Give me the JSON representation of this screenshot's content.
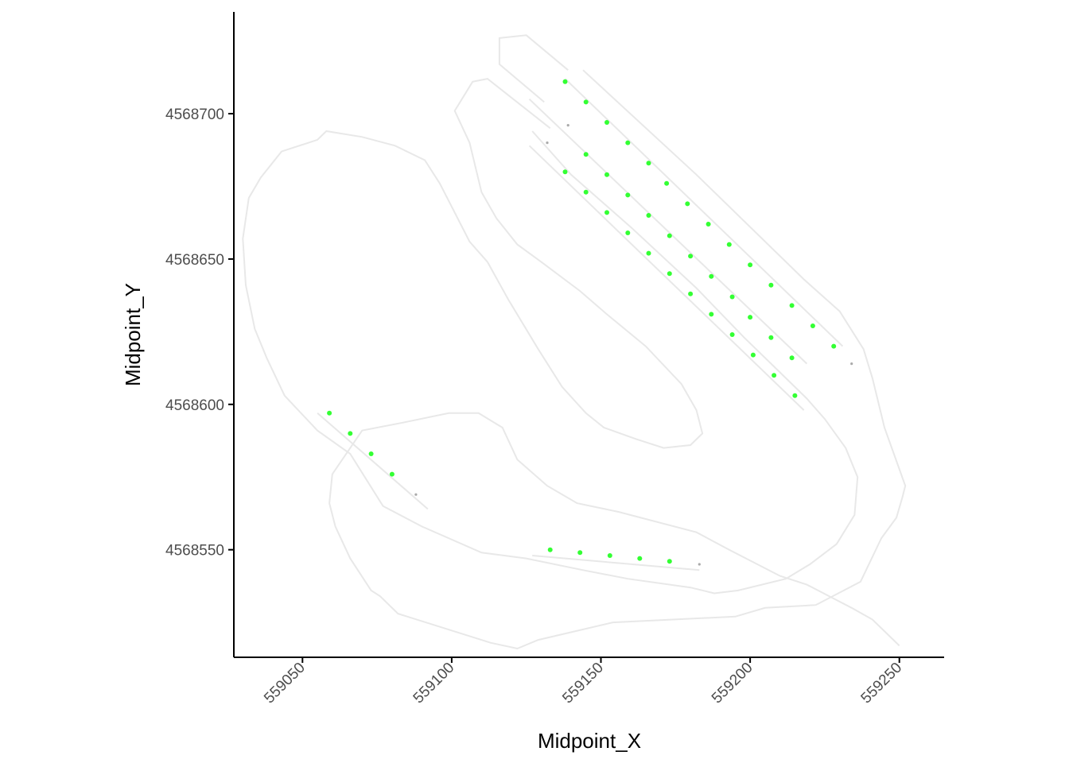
{
  "chart_data": {
    "type": "scatter",
    "title": "",
    "xlabel": "Midpoint_X",
    "ylabel": "Midpoint_Y",
    "xlim": [
      559027,
      559265
    ],
    "ylim": [
      4568513,
      4568735
    ],
    "x_ticks": [
      {
        "value": 559050,
        "label": "559050"
      },
      {
        "value": 559100,
        "label": "559100"
      },
      {
        "value": 559150,
        "label": "559150"
      },
      {
        "value": 559200,
        "label": "559200"
      },
      {
        "value": 559250,
        "label": "559250"
      }
    ],
    "y_ticks": [
      {
        "value": 4568550,
        "label": "4568550"
      },
      {
        "value": 4568600,
        "label": "4568600"
      },
      {
        "value": 4568650,
        "label": "4568650"
      },
      {
        "value": 4568700,
        "label": "4568700"
      }
    ],
    "grid": false,
    "legend": "none",
    "colors": {
      "point_included": "#33ff33",
      "point_excluded": "#aaaaaa",
      "track_line": "#e8e8e8",
      "axis": "#000000"
    },
    "track_lines": [
      {
        "name": "",
        "points": [
          [
            559138,
            4568712
          ],
          [
            559231,
            4568620
          ]
        ]
      },
      {
        "name": "",
        "points": [
          [
            559126,
            4568705
          ],
          [
            559219,
            4568614
          ]
        ]
      },
      {
        "name": "",
        "points": [
          [
            559126,
            4568689
          ],
          [
            559218,
            4568598
          ]
        ]
      },
      {
        "name": "",
        "points": [
          [
            559055,
            4568597
          ],
          [
            559092,
            4568564
          ]
        ]
      },
      {
        "name": "",
        "points": [
          [
            559127,
            4568548
          ],
          [
            559183,
            4568543
          ]
        ]
      }
    ],
    "boundaries": [
      {
        "name": "",
        "points": [
          [
            559139,
            4568715
          ],
          [
            559125,
            4568727
          ],
          [
            559116,
            4568726
          ],
          [
            559116,
            4568717
          ],
          [
            559131,
            4568704
          ]
        ]
      },
      {
        "name": "",
        "points": [
          [
            559144,
            4568715
          ],
          [
            559182,
            4568679
          ],
          [
            559218,
            4568643
          ],
          [
            559230,
            4568632
          ],
          [
            559238,
            4568619
          ],
          [
            559241,
            4568609
          ],
          [
            559245,
            4568592
          ],
          [
            559252,
            4568572
          ],
          [
            559251,
            4568568
          ],
          [
            559249,
            4568561
          ],
          [
            559244,
            4568554
          ],
          [
            559237,
            4568539
          ],
          [
            559222,
            4568531
          ],
          [
            559205,
            4568530
          ],
          [
            559195,
            4568527
          ],
          [
            559154,
            4568525
          ],
          [
            559129,
            4568519
          ],
          [
            559122,
            4568516
          ],
          [
            559113,
            4568518
          ],
          [
            559082,
            4568528
          ],
          [
            559076,
            4568534
          ],
          [
            559073,
            4568536
          ],
          [
            559066,
            4568547
          ],
          [
            559061,
            4568558
          ],
          [
            559059,
            4568566
          ],
          [
            559060,
            4568576
          ],
          [
            559070,
            4568591
          ],
          [
            559085,
            4568594
          ],
          [
            559099,
            4568597
          ],
          [
            559109,
            4568597
          ],
          [
            559117,
            4568592
          ],
          [
            559122,
            4568581
          ],
          [
            559132,
            4568572
          ],
          [
            559142,
            4568566
          ],
          [
            559156,
            4568563
          ],
          [
            559182,
            4568556
          ],
          [
            559193,
            4568550
          ],
          [
            559210,
            4568541
          ],
          [
            559219,
            4568538
          ],
          [
            559234,
            4568530
          ],
          [
            559241,
            4568526
          ],
          [
            559250,
            4568517
          ]
        ]
      },
      {
        "name": "",
        "points": [
          [
            559133,
            4568695
          ],
          [
            559112,
            4568712
          ],
          [
            559107,
            4568711
          ],
          [
            559101,
            4568701
          ],
          [
            559106,
            4568690
          ],
          [
            559110,
            4568673
          ],
          [
            559115,
            4568664
          ],
          [
            559122,
            4568655
          ],
          [
            559130,
            4568649
          ],
          [
            559143,
            4568639
          ],
          [
            559152,
            4568631
          ],
          [
            559165,
            4568620
          ],
          [
            559177,
            4568607
          ],
          [
            559182,
            4568598
          ],
          [
            559184,
            4568590
          ],
          [
            559180,
            4568586
          ],
          [
            559171,
            4568585
          ],
          [
            559162,
            4568588
          ],
          [
            559151,
            4568592
          ],
          [
            559145,
            4568597
          ],
          [
            559137,
            4568606
          ],
          [
            559129,
            4568619
          ],
          [
            559119,
            4568636
          ],
          [
            559112,
            4568649
          ],
          [
            559106,
            4568656
          ],
          [
            559101,
            4568666
          ],
          [
            559096,
            4568676
          ],
          [
            559091,
            4568684
          ],
          [
            559081,
            4568689
          ],
          [
            559070,
            4568692
          ],
          [
            559058,
            4568694
          ],
          [
            559055,
            4568691
          ],
          [
            559043,
            4568687
          ],
          [
            559036,
            4568678
          ],
          [
            559032,
            4568671
          ],
          [
            559030,
            4568657
          ],
          [
            559031,
            4568641
          ],
          [
            559034,
            4568626
          ],
          [
            559038,
            4568616
          ],
          [
            559044,
            4568603
          ],
          [
            559055,
            4568591
          ],
          [
            559066,
            4568583
          ],
          [
            559077,
            4568565
          ],
          [
            559090,
            4568558
          ],
          [
            559110,
            4568549
          ],
          [
            559125,
            4568547
          ],
          [
            559144,
            4568543
          ],
          [
            559159,
            4568540
          ],
          [
            559180,
            4568537
          ],
          [
            559188,
            4568535
          ],
          [
            559196,
            4568536
          ],
          [
            559212,
            4568540
          ],
          [
            559220,
            4568545
          ],
          [
            559229,
            4568552
          ],
          [
            559235,
            4568562
          ],
          [
            559236,
            4568575
          ],
          [
            559232,
            4568585
          ],
          [
            559225,
            4568595
          ],
          [
            559219,
            4568602
          ],
          [
            559209,
            4568612
          ],
          [
            559198,
            4568623
          ],
          [
            559182,
            4568640
          ],
          [
            559160,
            4568661
          ],
          [
            559140,
            4568679
          ],
          [
            559127,
            4568694
          ]
        ]
      }
    ],
    "series": [
      {
        "name": "",
        "color": "#33ff33",
        "points": [
          [
            559138,
            4568711
          ],
          [
            559145,
            4568704
          ],
          [
            559152,
            4568697
          ],
          [
            559159,
            4568690
          ],
          [
            559166,
            4568683
          ],
          [
            559172,
            4568676
          ],
          [
            559179,
            4568669
          ],
          [
            559186,
            4568662
          ],
          [
            559193,
            4568655
          ],
          [
            559200,
            4568648
          ],
          [
            559207,
            4568641
          ],
          [
            559214,
            4568634
          ],
          [
            559221,
            4568627
          ],
          [
            559228,
            4568620
          ],
          [
            559145,
            4568686
          ],
          [
            559152,
            4568679
          ],
          [
            559159,
            4568672
          ],
          [
            559166,
            4568665
          ],
          [
            559173,
            4568658
          ],
          [
            559180,
            4568651
          ],
          [
            559187,
            4568644
          ],
          [
            559194,
            4568637
          ],
          [
            559200,
            4568630
          ],
          [
            559207,
            4568623
          ],
          [
            559214,
            4568616
          ],
          [
            559138,
            4568680
          ],
          [
            559145,
            4568673
          ],
          [
            559152,
            4568666
          ],
          [
            559159,
            4568659
          ],
          [
            559166,
            4568652
          ],
          [
            559173,
            4568645
          ],
          [
            559180,
            4568638
          ],
          [
            559187,
            4568631
          ],
          [
            559194,
            4568624
          ],
          [
            559201,
            4568617
          ],
          [
            559208,
            4568610
          ],
          [
            559215,
            4568603
          ],
          [
            559059,
            4568597
          ],
          [
            559066,
            4568590
          ],
          [
            559073,
            4568583
          ],
          [
            559080,
            4568576
          ],
          [
            559133,
            4568550
          ],
          [
            559143,
            4568549
          ],
          [
            559153,
            4568548
          ],
          [
            559163,
            4568547
          ],
          [
            559173,
            4568546
          ]
        ]
      },
      {
        "name": "",
        "color": "#aaaaaa",
        "points": [
          [
            559234,
            4568614
          ],
          [
            559139,
            4568696
          ],
          [
            559132,
            4568690
          ],
          [
            559088,
            4568569
          ],
          [
            559183,
            4568545
          ]
        ]
      }
    ]
  }
}
